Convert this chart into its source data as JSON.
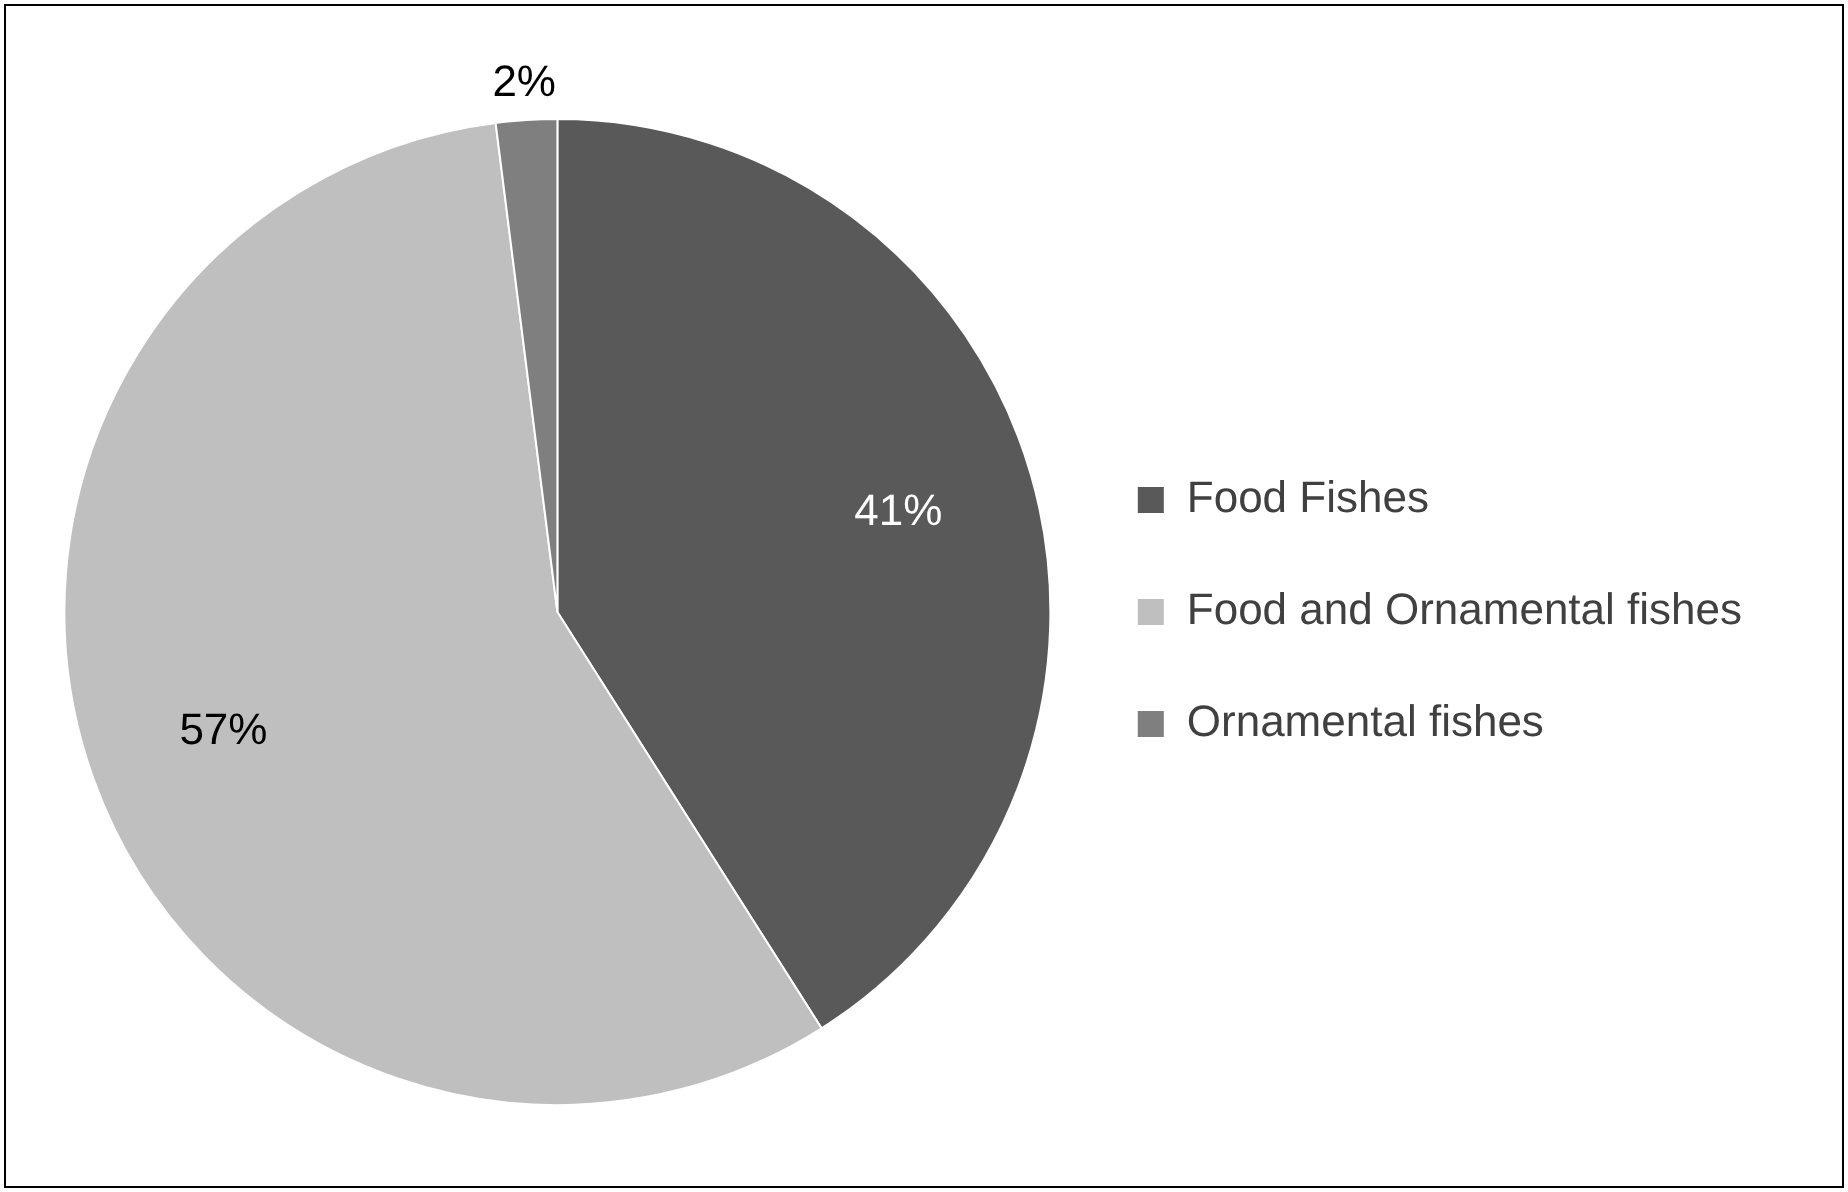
{
  "chart_data": {
    "type": "pie",
    "categories": [
      "Food Fishes",
      "Food and Ornamental fishes",
      "Ornamental fishes"
    ],
    "values": [
      41,
      57,
      2
    ],
    "colors": [
      "#595959",
      "#bfbfbf",
      "#7f7f7f"
    ],
    "value_labels": [
      "41%",
      "57%",
      "2%"
    ],
    "legend": "right"
  }
}
